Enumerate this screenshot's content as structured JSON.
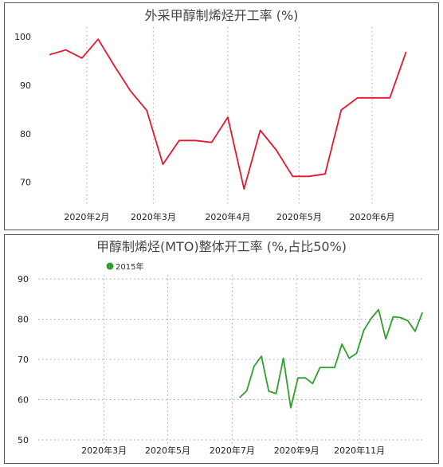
{
  "chart_data": [
    {
      "type": "line",
      "title": "外采甲醇制烯烃开工率 (%)",
      "xlabel": "",
      "ylabel": "",
      "ylim": [
        65,
        102
      ],
      "y_ticks": [
        "100",
        "90",
        "80",
        "70"
      ],
      "y_tick_values": [
        100,
        90,
        80,
        70
      ],
      "x_ticks": [
        "2020年2月",
        "2020年3月",
        "2020年4月",
        "2020年5月",
        "2020年6月"
      ],
      "x_tick_values": [
        2.3,
        6.4,
        11.0,
        15.4,
        19.9
      ],
      "xlim": [
        -0.4,
        22.9
      ],
      "grid": "vertical",
      "series": [
        {
          "color": "#e3172d",
          "x": [
            0,
            1,
            2,
            3,
            4,
            5,
            6,
            7,
            8,
            9,
            10,
            11,
            12,
            13,
            14,
            15,
            16,
            17,
            18,
            19,
            20,
            21,
            22
          ],
          "values": [
            96.3,
            97.3,
            95.6,
            99.5,
            94.0,
            88.8,
            84.8,
            73.7,
            78.6,
            78.6,
            78.2,
            83.4,
            68.6,
            80.7,
            76.6,
            71.2,
            71.2,
            71.7,
            84.9,
            87.4,
            87.4,
            87.4,
            96.9
          ]
        }
      ]
    },
    {
      "type": "line",
      "title": "甲醇制烯烃(MTO)整体开工率 (%,占比50%)",
      "xlabel": "",
      "ylabel": "",
      "ylim": [
        49,
        91
      ],
      "y_ticks": [
        "90",
        "80",
        "70",
        "60",
        "50"
      ],
      "y_tick_values": [
        90,
        80,
        70,
        60,
        50
      ],
      "x_ticks": [
        "2020年3月",
        "2020年5月",
        "2020年7月",
        "2020年9月",
        "2020年11月"
      ],
      "x_tick_values": [
        8.5,
        17.2,
        26.0,
        34.8,
        43.4
      ],
      "xlim": [
        -0.5,
        52.2
      ],
      "grid": "both",
      "legend": "top-center",
      "series": [
        {
          "name": "2015年",
          "color": "#2ca02c",
          "x_start": 27,
          "values": [
            60.5,
            62.2,
            68.3,
            70.8,
            62.1,
            61.5,
            70.3,
            58.0,
            65.4,
            65.4,
            64.0,
            68.0,
            68.0,
            68.0,
            73.8,
            70.3,
            71.5,
            77.3,
            80.2,
            82.4,
            75.1,
            80.6,
            80.4,
            79.6,
            77.0,
            81.7
          ]
        }
      ]
    }
  ]
}
